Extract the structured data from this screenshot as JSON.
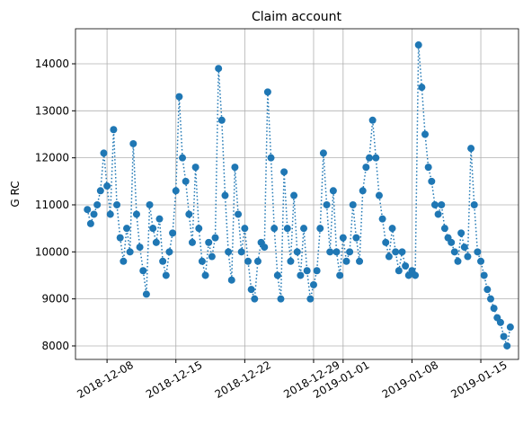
{
  "chart_data": {
    "type": "line",
    "title": "Claim account",
    "ylabel": "G RC",
    "series": [
      {
        "name": "Claim account",
        "color": "#1f77b4",
        "x": [
          "2018-12-06 00:00",
          "2018-12-06 08:00",
          "2018-12-06 16:00",
          "2018-12-07 00:00",
          "2018-12-07 08:00",
          "2018-12-07 16:00",
          "2018-12-08 00:00",
          "2018-12-08 08:00",
          "2018-12-08 16:00",
          "2018-12-09 00:00",
          "2018-12-09 08:00",
          "2018-12-09 16:00",
          "2018-12-10 00:00",
          "2018-12-10 08:00",
          "2018-12-10 16:00",
          "2018-12-11 00:00",
          "2018-12-11 08:00",
          "2018-12-11 16:00",
          "2018-12-12 00:00",
          "2018-12-12 08:00",
          "2018-12-12 16:00",
          "2018-12-13 00:00",
          "2018-12-13 08:00",
          "2018-12-13 16:00",
          "2018-12-14 00:00",
          "2018-12-14 08:00",
          "2018-12-14 16:00",
          "2018-12-15 00:00",
          "2018-12-15 08:00",
          "2018-12-15 16:00",
          "2018-12-16 00:00",
          "2018-12-16 08:00",
          "2018-12-16 16:00",
          "2018-12-17 00:00",
          "2018-12-17 08:00",
          "2018-12-17 16:00",
          "2018-12-18 00:00",
          "2018-12-18 08:00",
          "2018-12-18 16:00",
          "2018-12-19 00:00",
          "2018-12-19 08:00",
          "2018-12-19 16:00",
          "2018-12-20 00:00",
          "2018-12-20 08:00",
          "2018-12-20 16:00",
          "2018-12-21 00:00",
          "2018-12-21 08:00",
          "2018-12-21 16:00",
          "2018-12-22 00:00",
          "2018-12-22 08:00",
          "2018-12-22 16:00",
          "2018-12-23 00:00",
          "2018-12-23 08:00",
          "2018-12-23 16:00",
          "2018-12-24 00:00",
          "2018-12-24 08:00",
          "2018-12-24 16:00",
          "2018-12-25 00:00",
          "2018-12-25 08:00",
          "2018-12-25 16:00",
          "2018-12-26 00:00",
          "2018-12-26 08:00",
          "2018-12-26 16:00",
          "2018-12-27 00:00",
          "2018-12-27 08:00",
          "2018-12-27 16:00",
          "2018-12-28 00:00",
          "2018-12-28 08:00",
          "2018-12-28 16:00",
          "2018-12-29 00:00",
          "2018-12-29 08:00",
          "2018-12-29 16:00",
          "2018-12-30 00:00",
          "2018-12-30 08:00",
          "2018-12-30 16:00",
          "2018-12-31 00:00",
          "2018-12-31 08:00",
          "2018-12-31 16:00",
          "2019-01-01 00:00",
          "2019-01-01 08:00",
          "2019-01-01 16:00",
          "2019-01-02 00:00",
          "2019-01-02 08:00",
          "2019-01-02 16:00",
          "2019-01-03 00:00",
          "2019-01-03 08:00",
          "2019-01-03 16:00",
          "2019-01-04 00:00",
          "2019-01-04 08:00",
          "2019-01-04 16:00",
          "2019-01-05 00:00",
          "2019-01-05 08:00",
          "2019-01-05 16:00",
          "2019-01-06 00:00",
          "2019-01-06 08:00",
          "2019-01-06 16:00",
          "2019-01-07 00:00",
          "2019-01-07 08:00",
          "2019-01-07 16:00",
          "2019-01-08 00:00",
          "2019-01-08 08:00",
          "2019-01-08 16:00",
          "2019-01-09 00:00",
          "2019-01-09 08:00",
          "2019-01-09 16:00",
          "2019-01-10 00:00",
          "2019-01-10 08:00",
          "2019-01-10 16:00",
          "2019-01-11 00:00",
          "2019-01-11 08:00",
          "2019-01-11 16:00",
          "2019-01-12 00:00",
          "2019-01-12 08:00",
          "2019-01-12 16:00",
          "2019-01-13 00:00",
          "2019-01-13 08:00",
          "2019-01-13 16:00",
          "2019-01-14 00:00",
          "2019-01-14 08:00",
          "2019-01-14 16:00",
          "2019-01-15 00:00",
          "2019-01-15 08:00",
          "2019-01-15 16:00",
          "2019-01-16 00:00",
          "2019-01-16 08:00",
          "2019-01-16 16:00",
          "2019-01-17 00:00",
          "2019-01-17 08:00",
          "2019-01-17 16:00",
          "2019-01-18 00:00"
        ],
        "values": [
          10900,
          10600,
          10800,
          11000,
          11300,
          12100,
          11400,
          10800,
          12600,
          11000,
          10300,
          9800,
          10500,
          10000,
          12300,
          10800,
          10100,
          9600,
          9100,
          11000,
          10500,
          10200,
          10700,
          9800,
          9500,
          10000,
          10400,
          11300,
          13300,
          12000,
          11500,
          10800,
          10200,
          11800,
          10500,
          9800,
          9500,
          10200,
          9900,
          10300,
          13900,
          12800,
          11200,
          10000,
          9400,
          11800,
          10800,
          10000,
          10500,
          9800,
          9200,
          9000,
          9800,
          10200,
          10100,
          13400,
          12000,
          10500,
          9500,
          9000,
          11700,
          10500,
          9800,
          11200,
          10000,
          9500,
          10500,
          9600,
          9000,
          9300,
          9600,
          10500,
          12100,
          11000,
          10000,
          11300,
          10000,
          9500,
          10300,
          9800,
          10000,
          11000,
          10300,
          9800,
          11300,
          11800,
          12000,
          12800,
          12000,
          11200,
          10700,
          10200,
          9900,
          10500,
          10000,
          9600,
          10000,
          9700,
          9500,
          9600,
          9500,
          14400,
          13500,
          12500,
          11800,
          11500,
          11000,
          10800,
          11000,
          10500,
          10300,
          10200,
          10000,
          9800,
          10400,
          10100,
          9900,
          12200,
          11000,
          10000,
          9800,
          9500,
          9200,
          9000,
          8800,
          8600,
          8500,
          8200,
          8000,
          8400
        ]
      }
    ],
    "xlim": [
      "2018-12-04 19:00",
      "2019-01-18 20:00"
    ],
    "xticks": [
      "2018-12-08",
      "2018-12-15",
      "2018-12-22",
      "2018-12-29",
      "2019-01-01",
      "2019-01-08",
      "2019-01-15"
    ],
    "ylim": [
      7713,
      14745
    ],
    "yticks": [
      8000,
      9000,
      10000,
      11000,
      12000,
      13000,
      14000
    ],
    "grid": true
  }
}
